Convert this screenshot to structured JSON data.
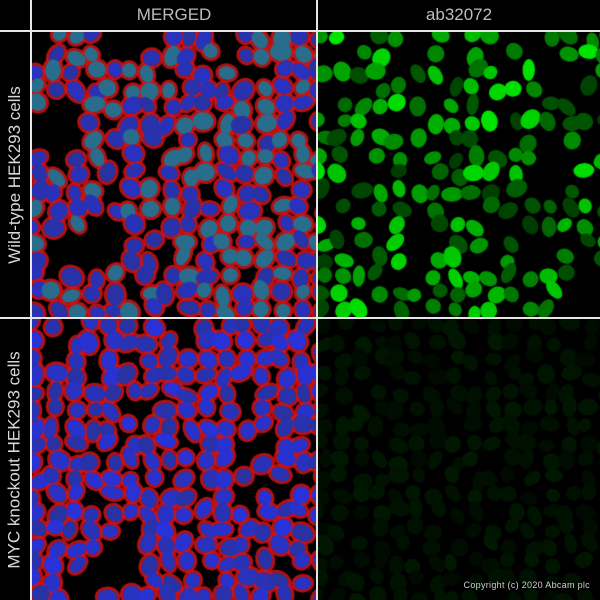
{
  "columns": [
    {
      "label": "MERGED"
    },
    {
      "label": "ab32072"
    }
  ],
  "rows": [
    {
      "label": "Wild-type HEK293 cells"
    },
    {
      "label": "MYC knockout HEK293 cells"
    }
  ],
  "copyright": "Copyright (c) 2020 Abcam plc",
  "colors": {
    "cytoskeleton": "#e01010",
    "nucleus": "#2030c0",
    "antibody": "#30c030",
    "divider": "#e6e6e6"
  }
}
